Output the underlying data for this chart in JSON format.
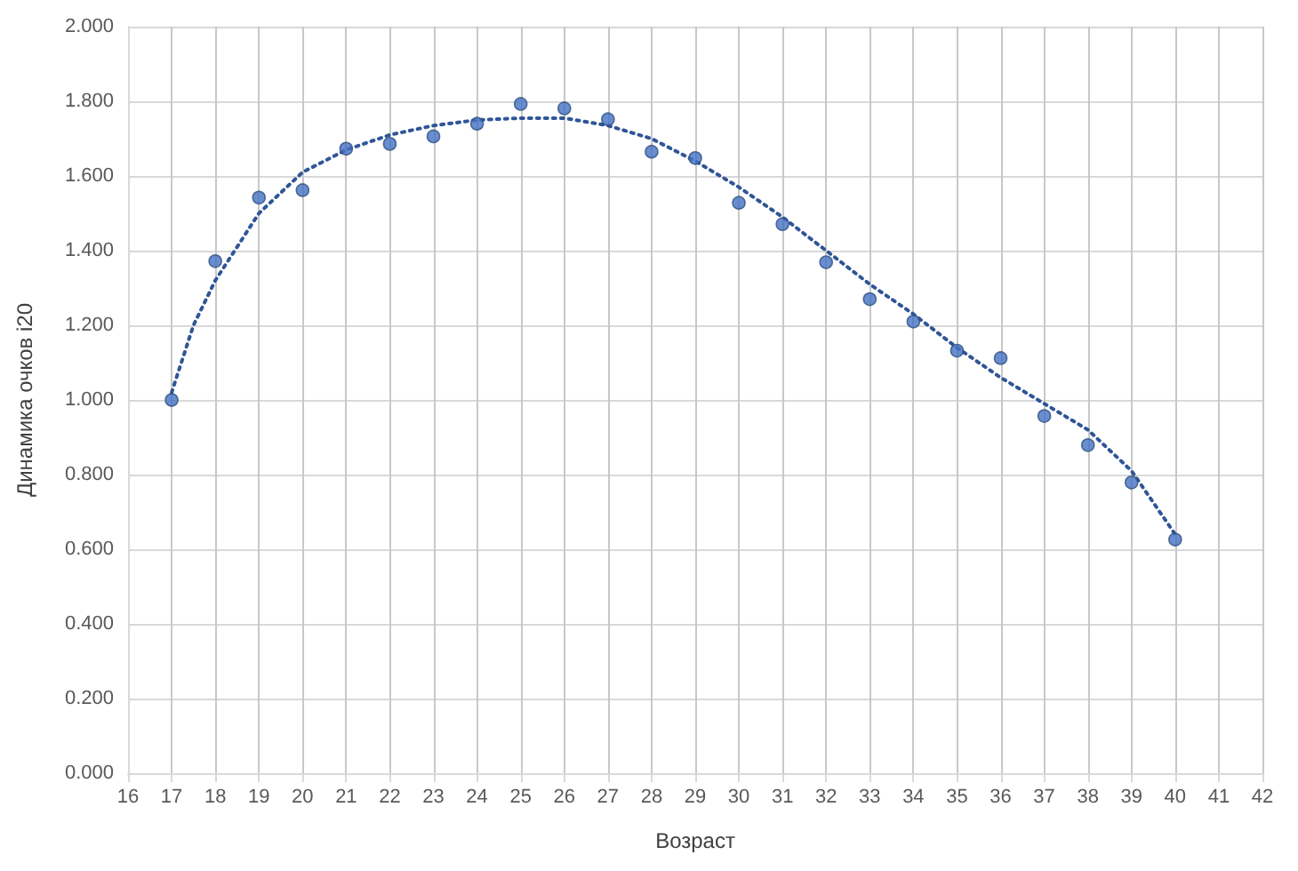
{
  "chart_data": {
    "type": "scatter",
    "xlabel": "Возраст",
    "ylabel": "Динамика очков i20",
    "xlim": [
      16,
      42
    ],
    "xticks": [
      16,
      17,
      18,
      19,
      20,
      21,
      22,
      23,
      24,
      25,
      26,
      27,
      28,
      29,
      30,
      31,
      32,
      33,
      34,
      35,
      36,
      37,
      38,
      39,
      40,
      41,
      42
    ],
    "ylim": [
      0,
      2
    ],
    "yticks": [
      {
        "value": 0,
        "label": "0.000"
      },
      {
        "value": 0.2,
        "label": "0.200"
      },
      {
        "value": 0.4,
        "label": "0.400"
      },
      {
        "value": 0.6,
        "label": "0.600"
      },
      {
        "value": 0.8,
        "label": "0.800"
      },
      {
        "value": 1,
        "label": "1.000"
      },
      {
        "value": 1.2,
        "label": "1.200"
      },
      {
        "value": 1.4,
        "label": "1.400"
      },
      {
        "value": 1.6,
        "label": "1.600"
      },
      {
        "value": 1.8,
        "label": "1.800"
      },
      {
        "value": 2,
        "label": "2.000"
      }
    ],
    "grid": true,
    "series": [
      {
        "color": "#4472c4",
        "marker": "circle",
        "x": [
          17,
          18,
          19,
          20,
          21,
          22,
          23,
          24,
          25,
          26,
          27,
          28,
          29,
          30,
          31,
          32,
          33,
          34,
          35,
          36,
          37,
          38,
          39,
          40
        ],
        "values": [
          1.0,
          1.372,
          1.542,
          1.562,
          1.673,
          1.686,
          1.706,
          1.74,
          1.793,
          1.781,
          1.752,
          1.665,
          1.648,
          1.528,
          1.471,
          1.369,
          1.27,
          1.21,
          1.132,
          1.112,
          0.957,
          0.879,
          0.779,
          0.626
        ]
      },
      {
        "type": "line",
        "color": "#2f5597",
        "marker": "none",
        "line_style": "dotted",
        "x": [
          17,
          17.5,
          18,
          19,
          20,
          21,
          22,
          23,
          24,
          25,
          26,
          27,
          28,
          29,
          30,
          31,
          32,
          33,
          34,
          35,
          36,
          37,
          38,
          39,
          40
        ],
        "values": [
          1.02,
          1.2,
          1.32,
          1.5,
          1.61,
          1.67,
          1.71,
          1.735,
          1.75,
          1.755,
          1.755,
          1.735,
          1.7,
          1.64,
          1.57,
          1.49,
          1.4,
          1.31,
          1.23,
          1.14,
          1.06,
          0.99,
          0.92,
          0.81,
          0.64
        ]
      }
    ]
  }
}
